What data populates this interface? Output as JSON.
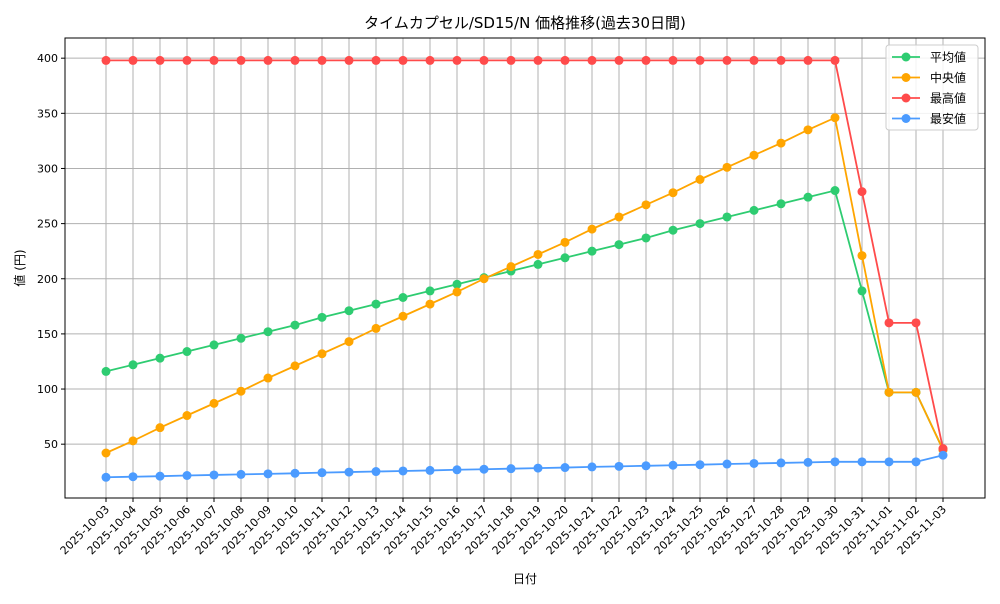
{
  "chart_data": {
    "type": "line",
    "title": "タイムカプセル/SD15/N 価格推移(過去30日間)",
    "xlabel": "日付",
    "ylabel": "値 (円)",
    "ylim": [
      1.2,
      418.3
    ],
    "yticks": [
      50,
      100,
      150,
      200,
      250,
      300,
      350,
      400
    ],
    "grid": true,
    "legend_position": "top-right",
    "x": [
      "2025-10-03",
      "2025-10-04",
      "2025-10-05",
      "2025-10-06",
      "2025-10-07",
      "2025-10-08",
      "2025-10-09",
      "2025-10-10",
      "2025-10-11",
      "2025-10-12",
      "2025-10-13",
      "2025-10-14",
      "2025-10-15",
      "2025-10-16",
      "2025-10-17",
      "2025-10-18",
      "2025-10-19",
      "2025-10-20",
      "2025-10-21",
      "2025-10-22",
      "2025-10-23",
      "2025-10-24",
      "2025-10-25",
      "2025-10-26",
      "2025-10-27",
      "2025-10-28",
      "2025-10-29",
      "2025-10-30",
      "2025-10-31",
      "2025-11-01",
      "2025-11-02",
      "2025-11-03"
    ],
    "series": [
      {
        "name": "平均値",
        "color": "#2ecc71",
        "values": [
          116,
          122,
          128,
          134,
          140,
          146,
          152,
          158,
          165,
          171,
          177,
          183,
          189,
          195,
          201,
          207,
          213,
          219,
          225,
          231,
          237,
          244,
          250,
          256,
          262,
          268,
          274,
          280,
          189,
          97,
          97,
          45
        ]
      },
      {
        "name": "中央値",
        "color": "#ffa500",
        "values": [
          42,
          53,
          65,
          76,
          87,
          98,
          110,
          121,
          132,
          143,
          155,
          166,
          177,
          188,
          200,
          211,
          222,
          233,
          245,
          256,
          267,
          278,
          290,
          301,
          312,
          323,
          335,
          346,
          221,
          97,
          97,
          45
        ]
      },
      {
        "name": "最高値",
        "color": "#ff4b4b",
        "values": [
          398,
          398,
          398,
          398,
          398,
          398,
          398,
          398,
          398,
          398,
          398,
          398,
          398,
          398,
          398,
          398,
          398,
          398,
          398,
          398,
          398,
          398,
          398,
          398,
          398,
          398,
          398,
          398,
          279,
          160,
          160,
          46
        ]
      },
      {
        "name": "最安値",
        "color": "#4b9bff",
        "values": [
          20,
          20.5,
          21,
          21.6,
          22.1,
          22.6,
          23.1,
          23.6,
          24.2,
          24.7,
          25.2,
          25.7,
          26.2,
          26.8,
          27.3,
          27.8,
          28.3,
          28.8,
          29.4,
          29.9,
          30.4,
          30.9,
          31.4,
          32,
          32.5,
          33,
          33.5,
          34,
          34,
          34,
          34,
          40
        ]
      }
    ]
  }
}
